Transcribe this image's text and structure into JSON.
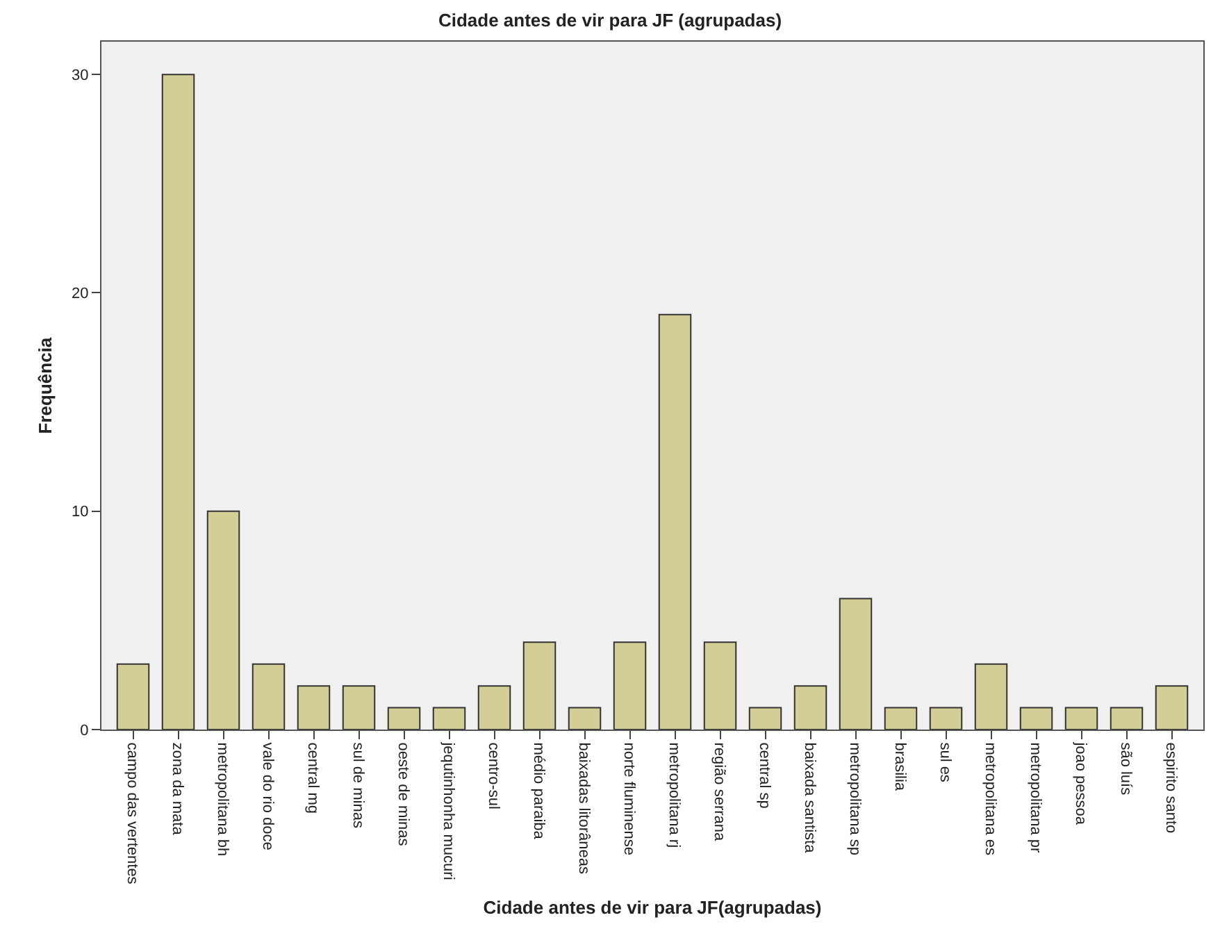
{
  "chart_data": {
    "type": "bar",
    "title": "Cidade antes de vir para JF (agrupadas)",
    "xlabel": "Cidade antes de vir para JF(agrupadas)",
    "ylabel": "Frequência",
    "categories": [
      "campo das vertentes",
      "zona da mata",
      "metropolitana bh",
      "vale do rio doce",
      "central mg",
      "sul de minas",
      "oeste de minas",
      "jequtinhonha mucuri",
      "centro-sul",
      "médio paraiba",
      "baixadas litorâneas",
      "norte fluminense",
      "metropolitana rj",
      "região serrana",
      "central sp",
      "baixada santista",
      "metropolitana sp",
      "brasilia",
      "sul es",
      "metropolitana es",
      "metropolitana pr",
      "joao pessoa",
      "são luís",
      "espirito santo"
    ],
    "values": [
      3,
      30,
      10,
      3,
      2,
      2,
      1,
      1,
      2,
      4,
      1,
      4,
      19,
      4,
      1,
      2,
      6,
      1,
      1,
      3,
      1,
      1,
      1,
      2
    ],
    "color": "#d3ce96",
    "ylim": [
      0,
      31.5
    ],
    "yticks": [
      0,
      10,
      20,
      30
    ],
    "grid": false,
    "legend": false
  }
}
